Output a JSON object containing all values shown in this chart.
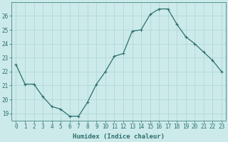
{
  "x": [
    0,
    1,
    2,
    3,
    4,
    5,
    6,
    7,
    8,
    9,
    10,
    11,
    12,
    13,
    14,
    15,
    16,
    17,
    18,
    19,
    20,
    21,
    22,
    23
  ],
  "y": [
    22.5,
    21.1,
    21.1,
    20.2,
    19.5,
    19.3,
    18.8,
    18.8,
    19.8,
    21.1,
    22.0,
    23.1,
    23.3,
    24.9,
    25.0,
    26.1,
    26.5,
    26.5,
    25.4,
    24.5,
    24.0,
    23.4,
    22.8,
    22.0
  ],
  "line_color": "#2d6e6e",
  "marker": "+",
  "marker_size": 3,
  "marker_lw": 0.8,
  "bg_color": "#cceaea",
  "grid_color": "#aad4d4",
  "xlabel": "Humidex (Indice chaleur)",
  "ylabel_ticks": [
    19,
    20,
    21,
    22,
    23,
    24,
    25,
    26
  ],
  "xtick_labels": [
    "0",
    "1",
    "2",
    "3",
    "4",
    "5",
    "6",
    "7",
    "8",
    "9",
    "10",
    "11",
    "12",
    "13",
    "14",
    "15",
    "16",
    "17",
    "18",
    "19",
    "20",
    "21",
    "22",
    "23"
  ],
  "ylim": [
    18.5,
    27.0
  ],
  "xlim": [
    -0.5,
    23.5
  ],
  "label_fontsize": 6.5,
  "tick_fontsize": 5.5,
  "line_width": 0.9
}
